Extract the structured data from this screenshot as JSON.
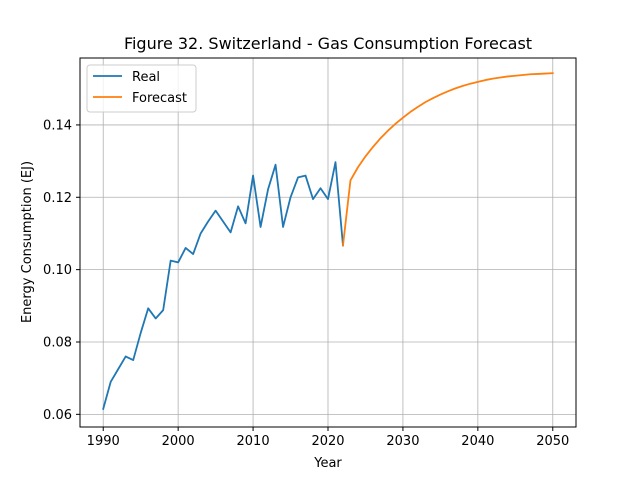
{
  "chart_data": {
    "type": "line",
    "title": "Figure 32. Switzerland - Gas Consumption Forecast",
    "xlabel": "Year",
    "ylabel": "Energy Consumption (EJ)",
    "xlim": [
      1986.9,
      2053.1
    ],
    "ylim": [
      0.0565,
      0.1585
    ],
    "xticks": [
      1990,
      2000,
      2010,
      2020,
      2030,
      2040,
      2050
    ],
    "xtick_labels": [
      "1990",
      "2000",
      "2010",
      "2020",
      "2030",
      "2040",
      "2050"
    ],
    "yticks": [
      0.06,
      0.08,
      0.1,
      0.12,
      0.14
    ],
    "ytick_labels": [
      "0.06",
      "0.08",
      "0.10",
      "0.12",
      "0.14"
    ],
    "grid": true,
    "legend_position": "top-left",
    "series": [
      {
        "name": "Real",
        "color": "#1f77b4",
        "x": [
          1990,
          1991,
          1992,
          1993,
          1994,
          1995,
          1996,
          1997,
          1998,
          1999,
          2000,
          2001,
          2002,
          2003,
          2004,
          2005,
          2006,
          2007,
          2008,
          2009,
          2010,
          2011,
          2012,
          2013,
          2014,
          2015,
          2016,
          2017,
          2018,
          2019,
          2020,
          2021,
          2022
        ],
        "y": [
          0.0615,
          0.069,
          0.0725,
          0.076,
          0.075,
          0.0825,
          0.0893,
          0.0865,
          0.0888,
          0.1025,
          0.102,
          0.106,
          0.1043,
          0.11,
          0.1133,
          0.1163,
          0.1133,
          0.1103,
          0.1175,
          0.1128,
          0.126,
          0.1118,
          0.1222,
          0.129,
          0.1118,
          0.12,
          0.1255,
          0.126,
          0.1195,
          0.1225,
          0.1195,
          0.1297,
          0.1067
        ]
      },
      {
        "name": "Forecast",
        "color": "#ff7f0e",
        "x": [
          2022,
          2023,
          2024,
          2025,
          2026,
          2027,
          2028,
          2029,
          2030,
          2031,
          2032,
          2033,
          2034,
          2035,
          2036,
          2037,
          2038,
          2039,
          2040,
          2041,
          2042,
          2043,
          2044,
          2045,
          2046,
          2047,
          2048,
          2049,
          2050
        ],
        "y": [
          0.1067,
          0.1247,
          0.1283,
          0.1313,
          0.1339,
          0.1363,
          0.1384,
          0.1403,
          0.142,
          0.1436,
          0.145,
          0.1463,
          0.1474,
          0.1484,
          0.1493,
          0.1501,
          0.1508,
          0.1514,
          0.1519,
          0.1524,
          0.1528,
          0.1531,
          0.1534,
          0.1536,
          0.1538,
          0.154,
          0.1541,
          0.1542,
          0.1543
        ]
      }
    ]
  }
}
